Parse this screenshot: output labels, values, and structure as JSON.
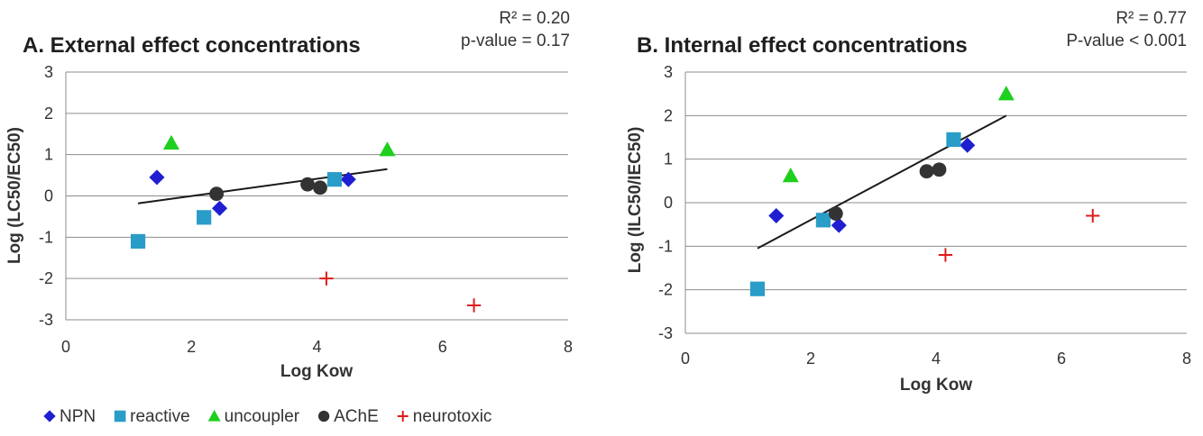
{
  "chart_data": [
    {
      "type": "scatter",
      "title": "A. External effect concentrations",
      "stats": [
        "R² = 0.20",
        "p-value = 0.17"
      ],
      "xlabel": "Log Kow",
      "ylabel": "Log (LC50/EC50)",
      "xlim": [
        0,
        8
      ],
      "ylim": [
        -3,
        3
      ],
      "xticks": [
        0,
        2,
        4,
        6,
        8
      ],
      "yticks": [
        -3,
        -2,
        -1,
        0,
        1,
        2,
        3
      ],
      "grid": "horizontal",
      "series": [
        {
          "name": "NPN",
          "color": "#1f1fd1",
          "marker": "diamond",
          "points": [
            [
              1.45,
              0.45
            ],
            [
              2.45,
              -0.3
            ],
            [
              4.5,
              0.4
            ]
          ]
        },
        {
          "name": "reactive",
          "color": "#2a9cc8",
          "marker": "square",
          "points": [
            [
              1.15,
              -1.1
            ],
            [
              2.2,
              -0.52
            ],
            [
              4.28,
              0.4
            ]
          ]
        },
        {
          "name": "uncoupler",
          "color": "#1ecf1e",
          "marker": "triangle",
          "points": [
            [
              1.68,
              1.28
            ],
            [
              5.12,
              1.12
            ]
          ]
        },
        {
          "name": "AChE",
          "color": "#333333",
          "marker": "circle",
          "points": [
            [
              2.4,
              0.05
            ],
            [
              3.85,
              0.28
            ],
            [
              4.05,
              0.2
            ]
          ]
        },
        {
          "name": "neurotoxic",
          "color": "#e01b1b",
          "marker": "plus",
          "points": [
            [
              4.15,
              -2.0
            ],
            [
              6.5,
              -2.65
            ]
          ]
        }
      ],
      "trendline": [
        [
          1.15,
          -0.18
        ],
        [
          5.12,
          0.65
        ]
      ]
    },
    {
      "type": "scatter",
      "title": "B. Internal effect concentrations",
      "stats": [
        "R² = 0.77",
        "P-value < 0.001"
      ],
      "xlabel": "Log Kow",
      "ylabel": "Log (ILC50/IEC50)",
      "xlim": [
        0,
        8
      ],
      "ylim": [
        -3,
        3
      ],
      "xticks": [
        0,
        2,
        4,
        6,
        8
      ],
      "yticks": [
        -3,
        -2,
        -1,
        0,
        1,
        2,
        3
      ],
      "grid": "horizontal",
      "series": [
        {
          "name": "NPN",
          "color": "#1f1fd1",
          "marker": "diamond",
          "points": [
            [
              1.45,
              -0.3
            ],
            [
              2.45,
              -0.52
            ],
            [
              4.5,
              1.32
            ]
          ]
        },
        {
          "name": "reactive",
          "color": "#2a9cc8",
          "marker": "square",
          "points": [
            [
              1.15,
              -1.98
            ],
            [
              2.2,
              -0.4
            ],
            [
              4.28,
              1.45
            ]
          ]
        },
        {
          "name": "uncoupler",
          "color": "#1ecf1e",
          "marker": "triangle",
          "points": [
            [
              1.68,
              0.62
            ],
            [
              5.12,
              2.5
            ]
          ]
        },
        {
          "name": "AChE",
          "color": "#333333",
          "marker": "circle",
          "points": [
            [
              2.4,
              -0.25
            ],
            [
              3.85,
              0.72
            ],
            [
              4.05,
              0.76
            ]
          ]
        },
        {
          "name": "neurotoxic",
          "color": "#e01b1b",
          "marker": "plus",
          "points": [
            [
              4.15,
              -1.2
            ],
            [
              6.5,
              -0.3
            ]
          ]
        }
      ],
      "trendline": [
        [
          1.15,
          -1.05
        ],
        [
          5.12,
          2.0
        ]
      ]
    }
  ],
  "legend": {
    "position": "bottom-left",
    "items": [
      {
        "name": "NPN",
        "color": "#1f1fd1",
        "marker": "diamond"
      },
      {
        "name": "reactive",
        "color": "#2a9cc8",
        "marker": "square"
      },
      {
        "name": "uncoupler",
        "color": "#1ecf1e",
        "marker": "triangle"
      },
      {
        "name": "AChE",
        "color": "#333333",
        "marker": "circle"
      },
      {
        "name": "neurotoxic",
        "color": "#e01b1b",
        "marker": "plus"
      }
    ]
  }
}
